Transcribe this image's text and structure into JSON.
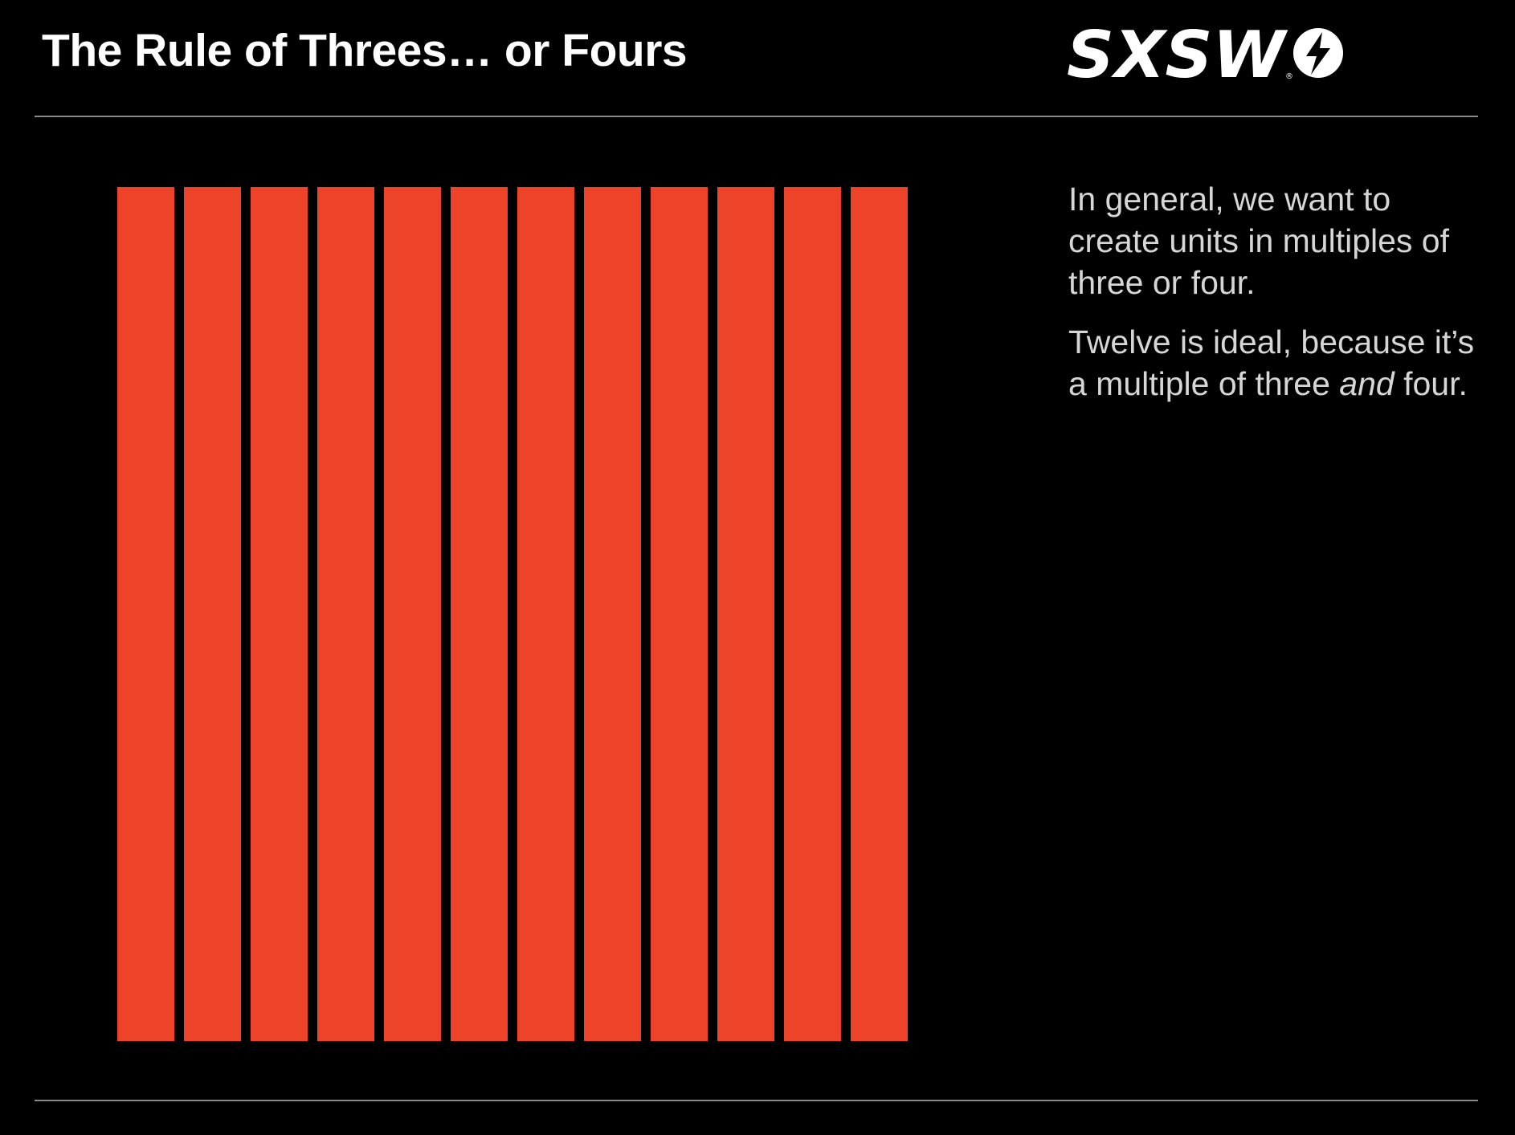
{
  "slide": {
    "title": "The Rule of Threes… or Fours",
    "logo_text": "SXSW",
    "logo_registered_mark": "®"
  },
  "grid": {
    "column_count": 12,
    "column_color": "#ED4329"
  },
  "body": {
    "paragraph1": "In general, we want to create units in multiples of three or four.",
    "paragraph2_prefix": "Twelve is ideal, because it’s a multiple of three ",
    "paragraph2_emphasis": "and",
    "paragraph2_suffix": " four."
  },
  "colors": {
    "background": "#000000",
    "accent": "#ED4329",
    "title_text": "#FFFFFF",
    "body_text": "#D6D6D6",
    "rule": "#8A8A8A"
  }
}
